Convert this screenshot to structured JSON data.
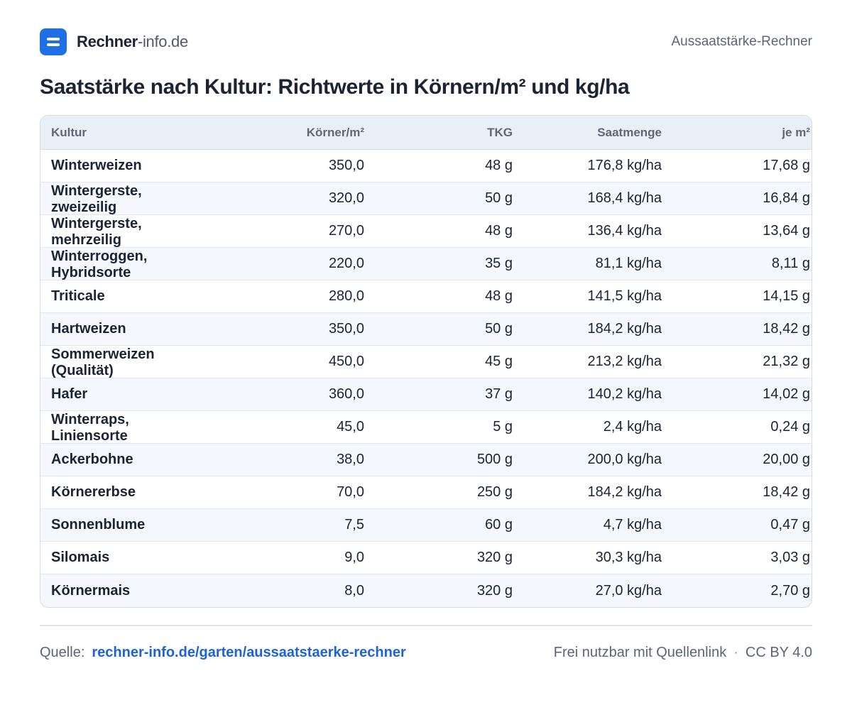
{
  "header": {
    "brand_main": "Rechner",
    "brand_sub": "-info.de",
    "right_label": "Aussaatstärke-Rechner"
  },
  "title": "Saatstärke nach Kultur: Richtwerte in Körnern/m² und kg/ha",
  "table": {
    "columns": [
      "Kultur",
      "Körner/m²",
      "TKG",
      "Saatmenge",
      "je m²"
    ],
    "rows": [
      [
        "Winterweizen",
        "350,0",
        "48 g",
        "176,8 kg/ha",
        "17,68 g"
      ],
      [
        "Wintergerste, zweizeilig",
        "320,0",
        "50 g",
        "168,4 kg/ha",
        "16,84 g"
      ],
      [
        "Wintergerste, mehrzeilig",
        "270,0",
        "48 g",
        "136,4 kg/ha",
        "13,64 g"
      ],
      [
        "Winterroggen, Hybridsorte",
        "220,0",
        "35 g",
        "81,1 kg/ha",
        "8,11 g"
      ],
      [
        "Triticale",
        "280,0",
        "48 g",
        "141,5 kg/ha",
        "14,15 g"
      ],
      [
        "Hartweizen",
        "350,0",
        "50 g",
        "184,2 kg/ha",
        "18,42 g"
      ],
      [
        "Sommerweizen (Qualität)",
        "450,0",
        "45 g",
        "213,2 kg/ha",
        "21,32 g"
      ],
      [
        "Hafer",
        "360,0",
        "37 g",
        "140,2 kg/ha",
        "14,02 g"
      ],
      [
        "Winterraps, Liniensorte",
        "45,0",
        "5 g",
        "2,4 kg/ha",
        "0,24 g"
      ],
      [
        "Ackerbohne",
        "38,0",
        "500 g",
        "200,0 kg/ha",
        "20,00 g"
      ],
      [
        "Körnererbse",
        "70,0",
        "250 g",
        "184,2 kg/ha",
        "18,42 g"
      ],
      [
        "Sonnenblume",
        "7,5",
        "60 g",
        "4,7 kg/ha",
        "0,47 g"
      ],
      [
        "Silomais",
        "9,0",
        "320 g",
        "30,3 kg/ha",
        "3,03 g"
      ],
      [
        "Körnermais",
        "8,0",
        "320 g",
        "27,0 kg/ha",
        "2,70 g"
      ]
    ]
  },
  "footer": {
    "source_label": "Quelle:",
    "source_link": "rechner-info.de/garten/aussaatstaerke-rechner",
    "license_text": "Frei nutzbar mit Quellenlink",
    "separator": "·",
    "license": "CC BY 4.0"
  },
  "colors": {
    "accent": "#1f6fe5",
    "link": "#1d63d8",
    "header_bg": "#e9eff7",
    "row_alt_bg": "#f4f7fb"
  }
}
